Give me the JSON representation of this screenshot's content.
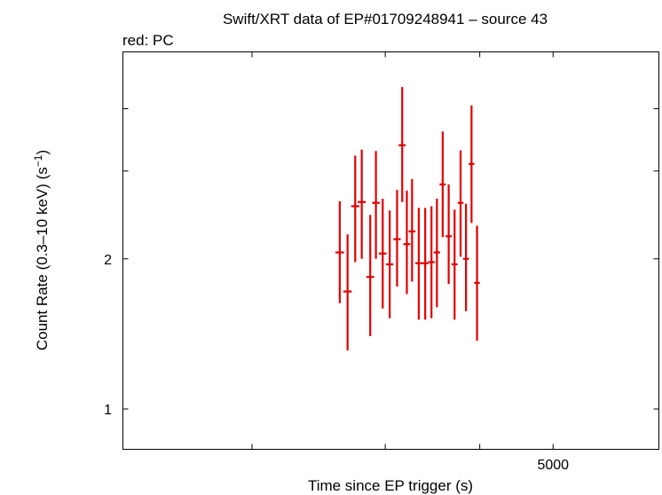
{
  "chart_data": {
    "type": "scatter",
    "title": "Swift/XRT data of EP#01709248941 – source 43",
    "subtitle": "red: PC",
    "xlabel": "Time since EP trigger (s)",
    "ylabel_main": "Count Rate (0.3–10 keV) (s",
    "ylabel_sup": "−1",
    "ylabel_end": ")",
    "x_scale": "log",
    "y_scale": "log",
    "xlim": [
      1350,
      6900
    ],
    "ylim": [
      0.83,
      5.2
    ],
    "x_tick_labels": [
      {
        "value": 5000,
        "label": "5000"
      }
    ],
    "x_minor_ticks": [
      2000,
      3000,
      4000,
      5000
    ],
    "y_tick_labels": [
      {
        "value": 1,
        "label": "1"
      },
      {
        "value": 2,
        "label": "2"
      }
    ],
    "y_minor_ticks": [
      1,
      2,
      3,
      4
    ],
    "series_color": "#e00000",
    "series": [
      {
        "name": "PC",
        "points": [
          {
            "x": 2612,
            "xlo": 2578,
            "xhi": 2646,
            "y": 2.06,
            "ylo": 1.63,
            "yhi": 2.61
          },
          {
            "x": 2675,
            "xlo": 2641,
            "xhi": 2709,
            "y": 1.72,
            "ylo": 1.31,
            "yhi": 2.24
          },
          {
            "x": 2738,
            "xlo": 2704,
            "xhi": 2772,
            "y": 2.55,
            "ylo": 1.97,
            "yhi": 3.22
          },
          {
            "x": 2793,
            "xlo": 2759,
            "xhi": 2827,
            "y": 2.6,
            "ylo": 2.0,
            "yhi": 3.31
          },
          {
            "x": 2866,
            "xlo": 2832,
            "xhi": 2900,
            "y": 1.84,
            "ylo": 1.4,
            "yhi": 2.45
          },
          {
            "x": 2916,
            "xlo": 2882,
            "xhi": 2950,
            "y": 2.59,
            "ylo": 2.0,
            "yhi": 3.29
          },
          {
            "x": 2977,
            "xlo": 2943,
            "xhi": 3011,
            "y": 2.05,
            "ylo": 1.59,
            "yhi": 2.64
          },
          {
            "x": 3041,
            "xlo": 3007,
            "xhi": 3075,
            "y": 1.95,
            "ylo": 1.52,
            "yhi": 2.5
          },
          {
            "x": 3110,
            "xlo": 3076,
            "xhi": 3144,
            "y": 2.19,
            "ylo": 1.76,
            "yhi": 2.75
          },
          {
            "x": 3159,
            "xlo": 3125,
            "xhi": 3193,
            "y": 3.38,
            "ylo": 2.6,
            "yhi": 4.42
          },
          {
            "x": 3204,
            "xlo": 3170,
            "xhi": 3238,
            "y": 2.14,
            "ylo": 1.7,
            "yhi": 2.74
          },
          {
            "x": 3255,
            "xlo": 3221,
            "xhi": 3289,
            "y": 2.27,
            "ylo": 1.8,
            "yhi": 2.89
          },
          {
            "x": 3322,
            "xlo": 3288,
            "xhi": 3356,
            "y": 1.96,
            "ylo": 1.51,
            "yhi": 2.53
          },
          {
            "x": 3388,
            "xlo": 3354,
            "xhi": 3422,
            "y": 1.96,
            "ylo": 1.51,
            "yhi": 2.53
          },
          {
            "x": 3453,
            "xlo": 3419,
            "xhi": 3487,
            "y": 1.97,
            "ylo": 1.52,
            "yhi": 2.55
          },
          {
            "x": 3511,
            "xlo": 3477,
            "xhi": 3545,
            "y": 2.06,
            "ylo": 1.6,
            "yhi": 2.64
          },
          {
            "x": 3573,
            "xlo": 3539,
            "xhi": 3607,
            "y": 2.82,
            "ylo": 2.21,
            "yhi": 3.6
          },
          {
            "x": 3639,
            "xlo": 3605,
            "xhi": 3673,
            "y": 2.22,
            "ylo": 1.78,
            "yhi": 2.82
          },
          {
            "x": 3705,
            "xlo": 3671,
            "xhi": 3739,
            "y": 1.95,
            "ylo": 1.51,
            "yhi": 2.51
          },
          {
            "x": 3773,
            "xlo": 3739,
            "xhi": 3807,
            "y": 2.59,
            "ylo": 2.02,
            "yhi": 3.3
          },
          {
            "x": 3836,
            "xlo": 3802,
            "xhi": 3870,
            "y": 2.0,
            "ylo": 1.57,
            "yhi": 2.58
          },
          {
            "x": 3901,
            "xlo": 3867,
            "xhi": 3935,
            "y": 3.1,
            "ylo": 2.36,
            "yhi": 4.06
          },
          {
            "x": 3967,
            "xlo": 3933,
            "xhi": 4001,
            "y": 1.79,
            "ylo": 1.37,
            "yhi": 2.33
          }
        ]
      }
    ]
  }
}
